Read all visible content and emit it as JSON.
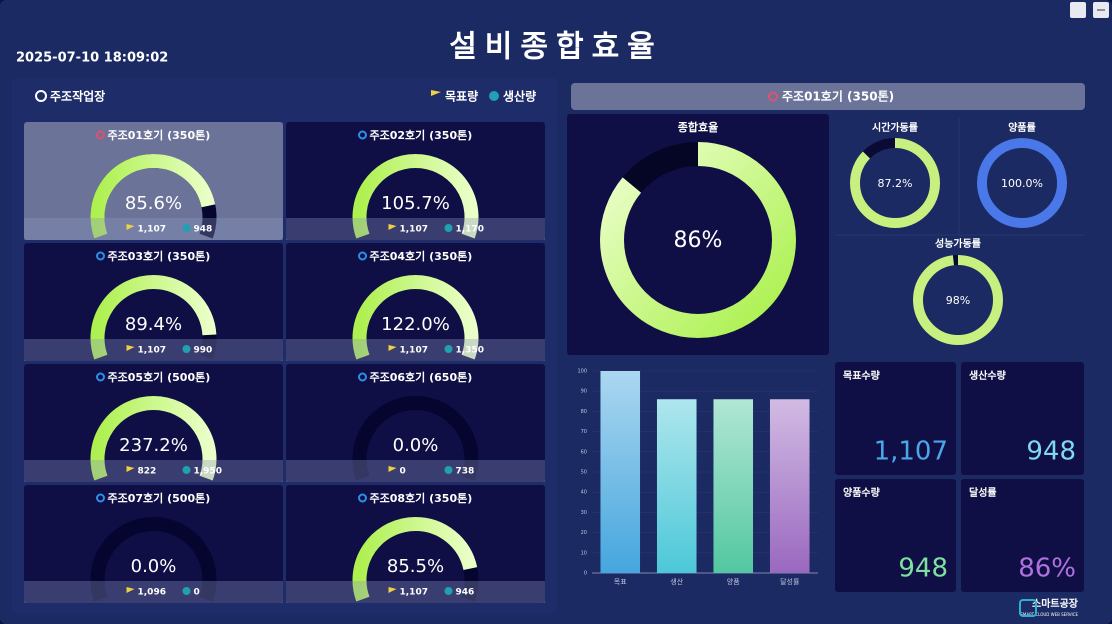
{
  "header": {
    "title": "설비종합효율",
    "datetime": "2025-07-10 18:09:02"
  },
  "workshop": {
    "title": "주조작업장",
    "legend": {
      "target": "목표량",
      "production": "생산량"
    },
    "machines": [
      {
        "name": "주조01호기 (350톤)",
        "rate": 85.6,
        "rate_label": "85.6%",
        "target": "1,107",
        "production": "948",
        "selected": true
      },
      {
        "name": "주조02호기 (350톤)",
        "rate": 105.7,
        "rate_label": "105.7%",
        "target": "1,107",
        "production": "1,170",
        "selected": false
      },
      {
        "name": "주조03호기 (350톤)",
        "rate": 89.4,
        "rate_label": "89.4%",
        "target": "1,107",
        "production": "990",
        "selected": false
      },
      {
        "name": "주조04호기 (350톤)",
        "rate": 122.0,
        "rate_label": "122.0%",
        "target": "1,107",
        "production": "1,350",
        "selected": false
      },
      {
        "name": "주조05호기 (500톤)",
        "rate": 237.2,
        "rate_label": "237.2%",
        "target": "822",
        "production": "1,950",
        "selected": false
      },
      {
        "name": "주조06호기 (650톤)",
        "rate": 0.0,
        "rate_label": "0.0%",
        "target": "0",
        "production": "738",
        "selected": false
      },
      {
        "name": "주조07호기 (500톤)",
        "rate": 0.0,
        "rate_label": "0.0%",
        "target": "1,096",
        "production": "0",
        "selected": false
      },
      {
        "name": "주조08호기 (350톤)",
        "rate": 85.5,
        "rate_label": "85.5%",
        "target": "1,107",
        "production": "946",
        "selected": false
      }
    ]
  },
  "detail": {
    "title": "주조01호기 (350톤)",
    "oee": {
      "name": "종합효율",
      "value": 86,
      "value_label": "86%"
    },
    "rings": [
      {
        "name": "시간가동률",
        "value": 87.2,
        "value_label": "87.2%",
        "color": "#c8f080"
      },
      {
        "name": "양품률",
        "value": 100.0,
        "value_label": "100.0%",
        "color": "#4a78e8"
      },
      {
        "name": "성능가동률",
        "value": 98,
        "value_label": "98%",
        "color": "#c8f080"
      }
    ],
    "kpis": [
      {
        "name": "목표수량",
        "value": "1,107",
        "color": "#4aa8e8"
      },
      {
        "name": "생산수량",
        "value": "948",
        "color": "#7fd8f0"
      },
      {
        "name": "양품수량",
        "value": "948",
        "color": "#7de0a0"
      },
      {
        "name": "달성률",
        "value": "86%",
        "color": "#b070e0"
      }
    ]
  },
  "chart_data": {
    "type": "bar",
    "categories": [
      "목표",
      "생산",
      "양품",
      "달성률"
    ],
    "values": [
      100,
      86,
      86,
      86
    ],
    "colors": [
      "#45a6de",
      "#4cc8d8",
      "#52c8a0",
      "#9a68c0"
    ],
    "ylim": [
      0,
      100
    ],
    "yticks": [
      0,
      10,
      20,
      30,
      40,
      50,
      60,
      70,
      80,
      90,
      100
    ],
    "grid": true
  },
  "logo": {
    "name": "스마트공장",
    "tagline": "SMART CLOUD WEB SERVICE"
  }
}
